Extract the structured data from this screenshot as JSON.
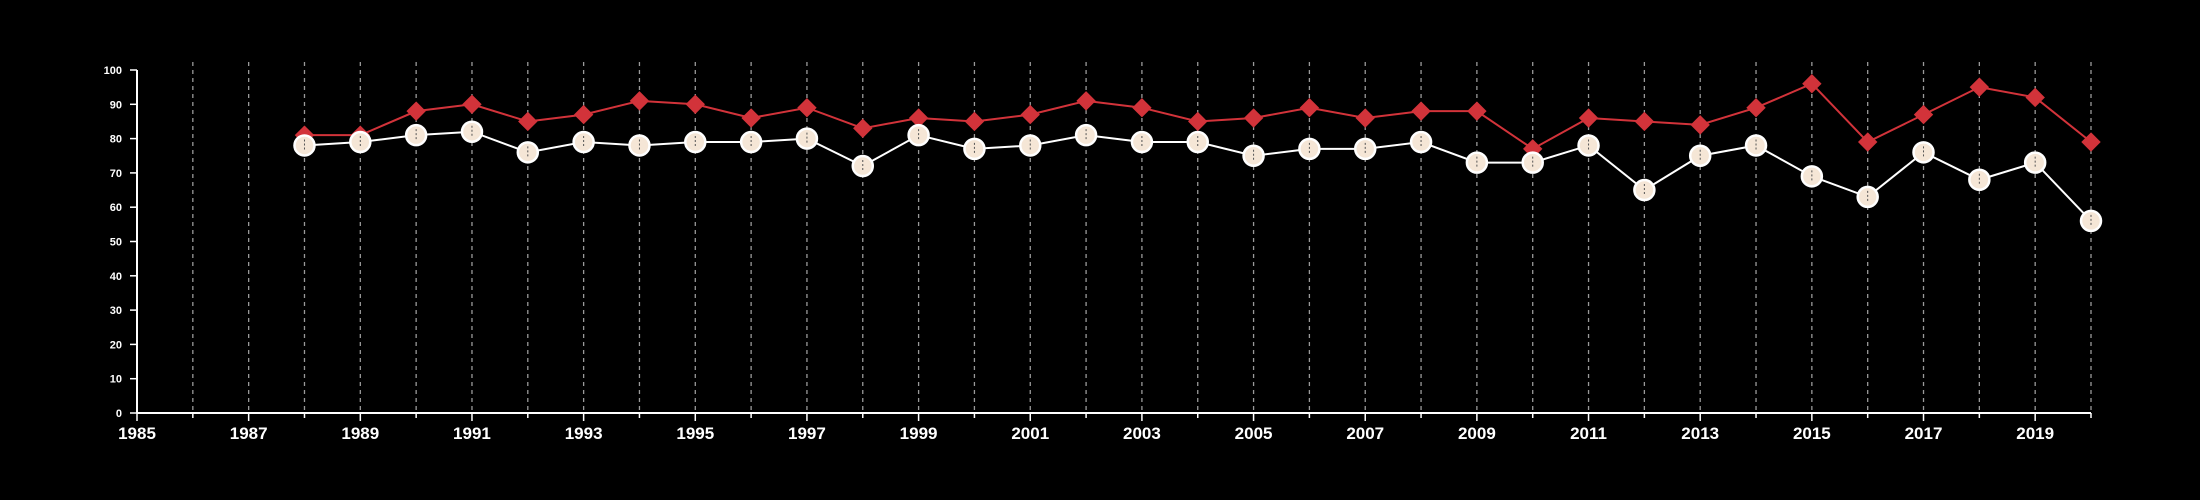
{
  "chart_data": {
    "type": "line",
    "title": "",
    "xlabel": "",
    "ylabel": "",
    "xlim": [
      1985,
      2020
    ],
    "ylim": [
      0,
      100
    ],
    "yticks": [
      0,
      10,
      20,
      30,
      40,
      50,
      60,
      70,
      80,
      90,
      100
    ],
    "xticks": [
      1985,
      1987,
      1989,
      1991,
      1993,
      1995,
      1997,
      1999,
      2001,
      2003,
      2005,
      2007,
      2009,
      2011,
      2013,
      2015,
      2017,
      2019
    ],
    "vertical_gridlines": "dashed at every year",
    "x": [
      1988,
      1989,
      1990,
      1991,
      1992,
      1993,
      1994,
      1995,
      1996,
      1997,
      1998,
      1999,
      2000,
      2001,
      2002,
      2003,
      2004,
      2005,
      2006,
      2007,
      2008,
      2009,
      2010,
      2011,
      2012,
      2013,
      2014,
      2015,
      2016,
      2017,
      2018,
      2019,
      2020
    ],
    "series": [
      {
        "marker": "diamond",
        "color": "#d2333a",
        "values": [
          81,
          81,
          88,
          90,
          85,
          87,
          91,
          90,
          86,
          89,
          83,
          86,
          85,
          87,
          91,
          89,
          85,
          86,
          89,
          86,
          88,
          88,
          77,
          86,
          85,
          84,
          89,
          96,
          79,
          87,
          95,
          92,
          79
        ]
      },
      {
        "marker": "circle",
        "color": "#ffffff",
        "fill": "#f5e6d6",
        "values": [
          78,
          79,
          81,
          82,
          76,
          79,
          78,
          79,
          79,
          80,
          72,
          81,
          77,
          78,
          81,
          79,
          79,
          75,
          77,
          77,
          79,
          73,
          73,
          78,
          65,
          75,
          78,
          69,
          63,
          76,
          68,
          73,
          56
        ]
      }
    ]
  }
}
